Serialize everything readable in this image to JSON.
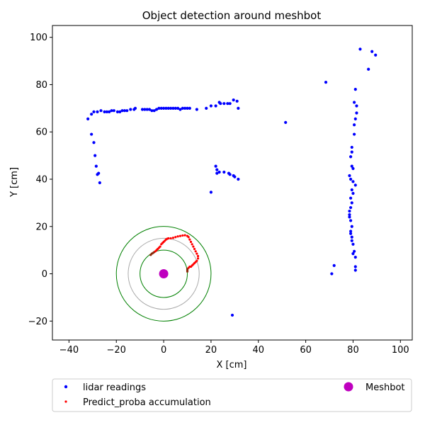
{
  "chart_data": {
    "type": "scatter",
    "title": "Object detection around meshbot",
    "xlabel": "X [cm]",
    "ylabel": "Y [cm]",
    "xlim": [
      -47,
      105
    ],
    "ylim": [
      -28,
      105
    ],
    "xticks": [
      -40,
      -20,
      0,
      20,
      40,
      60,
      80,
      100
    ],
    "yticks": [
      -20,
      0,
      20,
      40,
      60,
      80,
      100
    ],
    "grid": false,
    "legend_placement": "below",
    "colors": {
      "lidar": "#0000ff",
      "proba": "#ff0000",
      "proba_dark": "#8b2a0a",
      "meshbot": "#bf00bf",
      "circle_green": "#008000",
      "circle_gray": "#aaaaaa"
    },
    "circles": [
      {
        "r": 10,
        "color": "green"
      },
      {
        "r": 15,
        "color": "gray"
      },
      {
        "r": 20,
        "color": "green"
      }
    ],
    "series": [
      {
        "name": "lidar readings",
        "marker": "dot",
        "points": [
          [
            -32,
            65.5
          ],
          [
            -30.5,
            67.5
          ],
          [
            -29.5,
            68.5
          ],
          [
            -28,
            68.5
          ],
          [
            -26.5,
            69
          ],
          [
            -25,
            68.5
          ],
          [
            -24,
            68.5
          ],
          [
            -23,
            68.5
          ],
          [
            -22,
            69
          ],
          [
            -21,
            69
          ],
          [
            -19.5,
            68.5
          ],
          [
            -18.5,
            68.5
          ],
          [
            -17.5,
            69
          ],
          [
            -16.5,
            69
          ],
          [
            -15.5,
            69
          ],
          [
            -14,
            69.5
          ],
          [
            -12.5,
            69.5
          ],
          [
            -12,
            70
          ],
          [
            -9,
            69.5
          ],
          [
            -8,
            69.5
          ],
          [
            -7,
            69.5
          ],
          [
            -6,
            69.5
          ],
          [
            -5,
            69
          ],
          [
            -4,
            69
          ],
          [
            -3,
            69.5
          ],
          [
            -2,
            70
          ],
          [
            -1,
            70
          ],
          [
            0,
            70
          ],
          [
            1,
            70
          ],
          [
            2,
            70
          ],
          [
            3,
            70
          ],
          [
            4,
            70
          ],
          [
            5,
            70
          ],
          [
            6,
            70
          ],
          [
            7,
            69.5
          ],
          [
            8,
            70
          ],
          [
            9,
            70
          ],
          [
            10,
            70
          ],
          [
            11,
            70
          ],
          [
            14,
            69.5
          ],
          [
            18,
            70
          ],
          [
            20,
            71
          ],
          [
            22,
            71
          ],
          [
            23.5,
            72.5
          ],
          [
            24,
            72
          ],
          [
            25.5,
            72
          ],
          [
            27,
            72
          ],
          [
            28,
            72
          ],
          [
            29.5,
            73.5
          ],
          [
            31,
            73
          ],
          [
            31.5,
            70
          ],
          [
            -30.5,
            59
          ],
          [
            -29.5,
            55.5
          ],
          [
            -29,
            50
          ],
          [
            -28.5,
            45.5
          ],
          [
            -28,
            42
          ],
          [
            -27.5,
            42.5
          ],
          [
            -27,
            38.5
          ],
          [
            20,
            34.5
          ],
          [
            22,
            45.5
          ],
          [
            22.5,
            44
          ],
          [
            22.5,
            42.5
          ],
          [
            23.5,
            43
          ],
          [
            25.5,
            43
          ],
          [
            27.5,
            42.5
          ],
          [
            28,
            42
          ],
          [
            29.5,
            41.5
          ],
          [
            30,
            41
          ],
          [
            31.5,
            40
          ],
          [
            51.5,
            64
          ],
          [
            68.5,
            81
          ],
          [
            83,
            95
          ],
          [
            88,
            94
          ],
          [
            89.5,
            92.5
          ],
          [
            86.5,
            86.5
          ],
          [
            81,
            78
          ],
          [
            80.5,
            72.5
          ],
          [
            81.5,
            71
          ],
          [
            81.5,
            68
          ],
          [
            81,
            65.5
          ],
          [
            80.5,
            63
          ],
          [
            80.5,
            59
          ],
          [
            79.5,
            53.5
          ],
          [
            79.5,
            51.5
          ],
          [
            79,
            49.5
          ],
          [
            79.5,
            45.5
          ],
          [
            80,
            44.5
          ],
          [
            78.5,
            41.5
          ],
          [
            79,
            40
          ],
          [
            80,
            39
          ],
          [
            81,
            37.5
          ],
          [
            79.5,
            35.5
          ],
          [
            80,
            34
          ],
          [
            79,
            32
          ],
          [
            79.5,
            30
          ],
          [
            79,
            28
          ],
          [
            78.5,
            26.5
          ],
          [
            78.5,
            25
          ],
          [
            78.5,
            24
          ],
          [
            79,
            22.5
          ],
          [
            79.5,
            20
          ],
          [
            79,
            18
          ],
          [
            79,
            17
          ],
          [
            79.5,
            15.5
          ],
          [
            79.5,
            14
          ],
          [
            80,
            12.5
          ],
          [
            80.5,
            9.5
          ],
          [
            80,
            8.5
          ],
          [
            81,
            7
          ],
          [
            81,
            3
          ],
          [
            81,
            1.5
          ],
          [
            72,
            3.5
          ],
          [
            71,
            0
          ],
          [
            29,
            -17.5
          ]
        ]
      },
      {
        "name": "Predict_proba accumulation",
        "marker": "dot-small",
        "points": [
          [
            -5.5,
            8
          ],
          [
            -5,
            8.5
          ],
          [
            -4.5,
            8.8
          ],
          [
            -4,
            9.2
          ],
          [
            -3.5,
            9.5
          ],
          [
            -3,
            10
          ],
          [
            -2.5,
            10.5
          ],
          [
            -2,
            11
          ],
          [
            -1.5,
            11.5
          ],
          [
            -1,
            12.5
          ],
          [
            -0.5,
            13
          ],
          [
            0,
            13.5
          ],
          [
            0.5,
            14
          ],
          [
            1,
            14.5
          ],
          [
            1.5,
            14.8
          ],
          [
            2,
            15
          ],
          [
            3,
            15
          ],
          [
            4,
            15.2
          ],
          [
            5,
            15.5
          ],
          [
            6,
            15.8
          ],
          [
            7,
            16
          ],
          [
            8,
            16.2
          ],
          [
            9,
            16.3
          ],
          [
            10,
            16
          ],
          [
            10.5,
            15.5
          ],
          [
            11,
            14.5
          ],
          [
            11.5,
            13.5
          ],
          [
            12,
            12.5
          ],
          [
            12.5,
            11.5
          ],
          [
            13,
            10.5
          ],
          [
            13.5,
            9.5
          ],
          [
            14,
            8.5
          ],
          [
            14.5,
            7.5
          ],
          [
            14.5,
            6.5
          ],
          [
            14,
            5.5
          ],
          [
            13.5,
            5
          ],
          [
            13,
            4.5
          ],
          [
            12.5,
            4
          ],
          [
            12,
            3.5
          ],
          [
            11.5,
            3
          ],
          [
            11,
            3
          ],
          [
            10.5,
            2.5
          ],
          [
            10,
            2
          ],
          [
            10,
            1.5
          ],
          [
            10,
            1
          ]
        ]
      },
      {
        "name": "Meshbot",
        "marker": "big-dot",
        "points": [
          [
            0,
            0
          ]
        ]
      }
    ]
  }
}
